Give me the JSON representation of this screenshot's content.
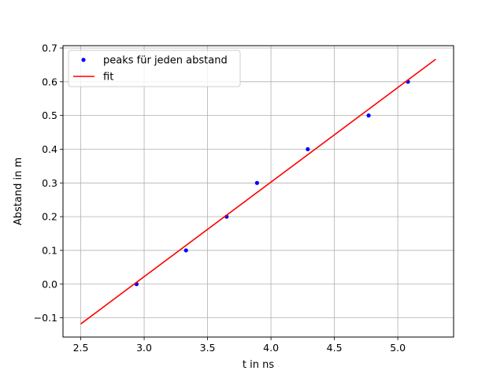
{
  "chart_data": {
    "type": "scatter",
    "title": "",
    "xlabel": "t in ns",
    "ylabel": "Abstand in m",
    "xlim": [
      2.36,
      5.44
    ],
    "ylim": [
      -0.157,
      0.707
    ],
    "grid": true,
    "legend_position": "top-left",
    "xticks": [
      2.5,
      3.0,
      3.5,
      4.0,
      4.5,
      5.0
    ],
    "xtick_labels": [
      "2.5",
      "3.0",
      "3.5",
      "4.0",
      "4.5",
      "5.0"
    ],
    "yticks": [
      -0.1,
      0.0,
      0.1,
      0.2,
      0.3,
      0.4,
      0.5,
      0.6,
      0.7
    ],
    "ytick_labels": [
      "−0.1",
      "0.0",
      "0.1",
      "0.2",
      "0.3",
      "0.4",
      "0.5",
      "0.6",
      "0.7"
    ],
    "series": [
      {
        "name": "peaks für jeden abstand",
        "kind": "points",
        "color": "#0000ff",
        "x": [
          2.94,
          3.33,
          3.65,
          3.89,
          4.29,
          4.77,
          5.08
        ],
        "y": [
          0.0,
          0.1,
          0.2,
          0.3,
          0.4,
          0.5,
          0.6
        ]
      },
      {
        "name": "fit",
        "kind": "line",
        "color": "#ff0000",
        "x": [
          2.5,
          5.3
        ],
        "y": [
          -0.118,
          0.667
        ]
      }
    ]
  }
}
